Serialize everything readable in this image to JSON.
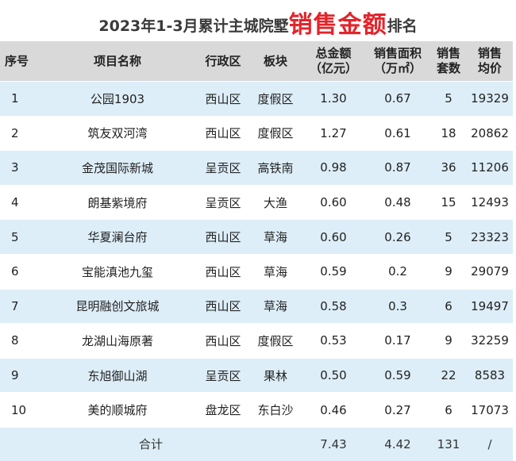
{
  "title": {
    "prefix": "2023年1-3月累计主城院墅",
    "highlight": "销售金额",
    "suffix": "排名"
  },
  "headers": {
    "idx": "序号",
    "name": "项目名称",
    "district": "行政区",
    "block": "板块",
    "amount_l1": "总金额",
    "amount_l2": "（亿元）",
    "area_l1": "销售面积",
    "area_l2": "（万㎡）",
    "units_l1": "销售",
    "units_l2": "套数",
    "price_l1": "销售",
    "price_l2": "均价"
  },
  "rows": [
    {
      "idx": "1",
      "name": "公园1903",
      "district": "西山区",
      "block": "度假区",
      "amount": "1.30",
      "area": "0.67",
      "units": "5",
      "price": "19329"
    },
    {
      "idx": "2",
      "name": "筑友双河湾",
      "district": "西山区",
      "block": "度假区",
      "amount": "1.27",
      "area": "0.61",
      "units": "18",
      "price": "20862"
    },
    {
      "idx": "3",
      "name": "金茂国际新城",
      "district": "呈贡区",
      "block": "高铁南",
      "amount": "0.98",
      "area": "0.87",
      "units": "36",
      "price": "11206"
    },
    {
      "idx": "4",
      "name": "朗基紫境府",
      "district": "呈贡区",
      "block": "大渔",
      "amount": "0.60",
      "area": "0.48",
      "units": "15",
      "price": "12493"
    },
    {
      "idx": "5",
      "name": "华夏澜台府",
      "district": "西山区",
      "block": "草海",
      "amount": "0.60",
      "area": "0.26",
      "units": "5",
      "price": "23323"
    },
    {
      "idx": "6",
      "name": "宝能滇池九玺",
      "district": "西山区",
      "block": "草海",
      "amount": "0.59",
      "area": "0.2",
      "units": "9",
      "price": "29079"
    },
    {
      "idx": "7",
      "name": "昆明融创文旅城",
      "district": "西山区",
      "block": "草海",
      "amount": "0.58",
      "area": "0.3",
      "units": "6",
      "price": "19497"
    },
    {
      "idx": "8",
      "name": "龙湖山海原著",
      "district": "西山区",
      "block": "度假区",
      "amount": "0.53",
      "area": "0.17",
      "units": "9",
      "price": "32259"
    },
    {
      "idx": "9",
      "name": "东旭御山湖",
      "district": "呈贡区",
      "block": "果林",
      "amount": "0.50",
      "area": "0.59",
      "units": "22",
      "price": "8583"
    },
    {
      "idx": "10",
      "name": "美的顺城府",
      "district": "盘龙区",
      "block": "东白沙",
      "amount": "0.46",
      "area": "0.27",
      "units": "6",
      "price": "17073"
    }
  ],
  "total": {
    "label": "合计",
    "amount": "7.43",
    "area": "4.42",
    "units": "131",
    "price": "/"
  },
  "colors": {
    "highlight": "#e3242b",
    "header_bg": "#d9d9d9",
    "stripe_bg": "#ddeef8"
  }
}
